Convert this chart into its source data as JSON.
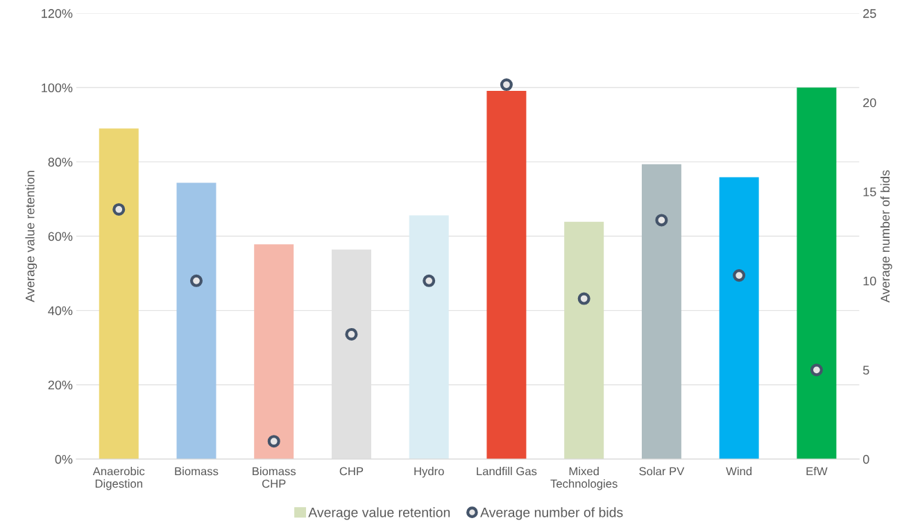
{
  "chart_data": {
    "type": "bar",
    "ylabel": "Average value retention",
    "y2label": "Average number of bids",
    "categories": [
      "Anaerobic\nDigestion",
      "Biomass",
      "Biomass\nCHP",
      "CHP",
      "Hydro",
      "Landfill Gas",
      "Mixed\nTechnologies",
      "Solar PV",
      "Wind",
      "EfW"
    ],
    "series": [
      {
        "name": "Average value retention",
        "color": "#d5e0bb",
        "colors": [
          "#ecd672",
          "#9fc5e8",
          "#f5b7aa",
          "#e0e0e0",
          "#daedf4",
          "#e94b35",
          "#d5e0bb",
          "#adbcc0",
          "#00b0f0",
          "#00b050"
        ],
        "values": [
          0.89,
          0.744,
          0.578,
          0.564,
          0.656,
          0.991,
          0.639,
          0.794,
          0.759,
          1.0
        ]
      },
      {
        "name": "Average number of bids",
        "type": "scatter",
        "axis": "y2",
        "marker": "circle",
        "color": "#44546a",
        "values": [
          14,
          10,
          1,
          7,
          10,
          21,
          9,
          13.4,
          10.3,
          5
        ]
      }
    ],
    "ylim": [
      0,
      1.2
    ],
    "yticks": [
      {
        "value": 0,
        "label": "0%"
      },
      {
        "value": 0.2,
        "label": "20%"
      },
      {
        "value": 0.4,
        "label": "40%"
      },
      {
        "value": 0.6,
        "label": "60%"
      },
      {
        "value": 0.8,
        "label": "80%"
      },
      {
        "value": 1.0,
        "label": "100%"
      },
      {
        "value": 1.2,
        "label": "120%"
      }
    ],
    "y2lim": [
      0,
      25
    ],
    "y2ticks": [
      0,
      5,
      10,
      15,
      20,
      25
    ],
    "grid": "y",
    "legend": "bottom"
  }
}
